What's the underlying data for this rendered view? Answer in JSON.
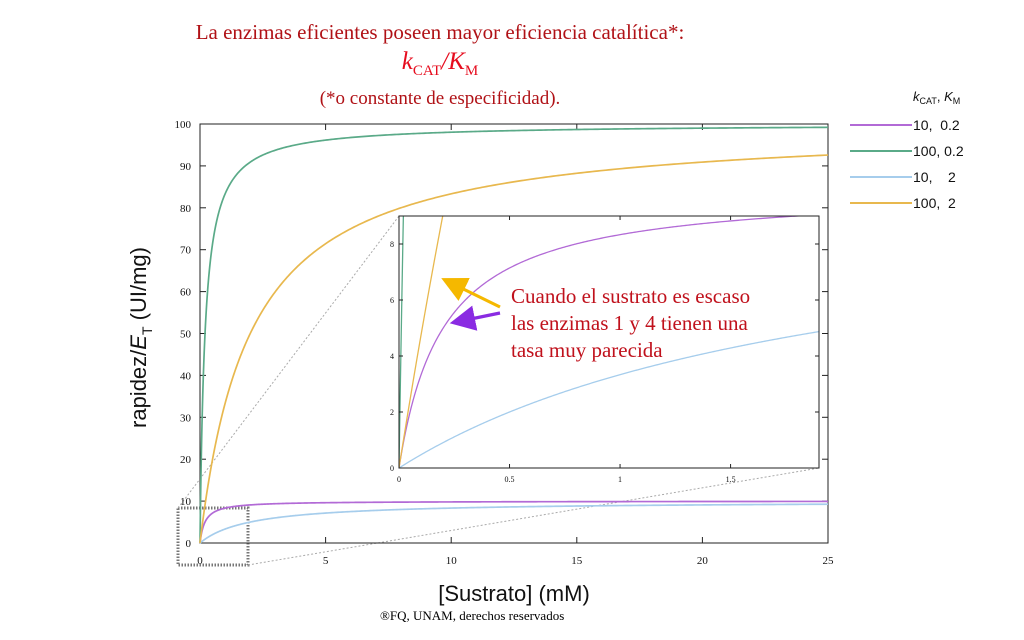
{
  "header": {
    "title": "La enzimas eficientes poseen mayor eficiencia catalítica*:",
    "formula_k": "k",
    "formula_cat": "CAT",
    "formula_slash": "/",
    "formula_K": "K",
    "formula_m": "M",
    "subtitle": "(*o constante de especificidad)."
  },
  "footer": "®FQ, UNAM, derechos reservados",
  "annotation": {
    "lines": [
      "Cuando el sustrato es escaso",
      "las enzimas 1 y 4 tienen una",
      "tasa muy parecida"
    ],
    "color": "#c0111c",
    "arrow_colors": [
      "#f5b800",
      "#8a2be2"
    ]
  },
  "chart_data": [
    {
      "type": "line",
      "name": "main",
      "xlabel": "[Sustrato] (mM)",
      "ylabel_prefix": "rapidez/",
      "ylabel_italic": "E",
      "ylabel_sub": "T",
      "ylabel_suffix": " (UI/mg)",
      "xlim": [
        0,
        25
      ],
      "ylim": [
        0,
        100
      ],
      "xticks": [
        0,
        5,
        10,
        15,
        20,
        25
      ],
      "yticks": [
        0,
        10,
        20,
        30,
        40,
        50,
        60,
        70,
        80,
        90,
        100
      ],
      "grid": false,
      "legend": {
        "position": "right",
        "header_k": "k",
        "header_k_sub": "CAT",
        "header_sep": ", ",
        "header_K": "K",
        "header_K_sub": "M"
      },
      "series": [
        {
          "label": "10,  0.2",
          "kcat": 10,
          "km": 0.2,
          "color": "#b26ad6"
        },
        {
          "label": "100, 0.2",
          "kcat": 100,
          "km": 0.2,
          "color": "#5aaa88"
        },
        {
          "label": "10,    2",
          "kcat": 10,
          "km": 2,
          "color": "#a6cdec"
        },
        {
          "label": "100,  2",
          "kcat": 100,
          "km": 2,
          "color": "#e8b84e"
        }
      ]
    },
    {
      "type": "line",
      "name": "inset",
      "xlim": [
        0,
        1.9
      ],
      "ylim": [
        0,
        9
      ],
      "xticks": [
        0,
        0.5,
        1,
        1.5
      ],
      "xtick_labels": [
        "0",
        "0.5",
        "1",
        "1.5"
      ],
      "yticks": [
        0,
        2,
        4,
        6,
        8
      ],
      "grid": false
    }
  ]
}
